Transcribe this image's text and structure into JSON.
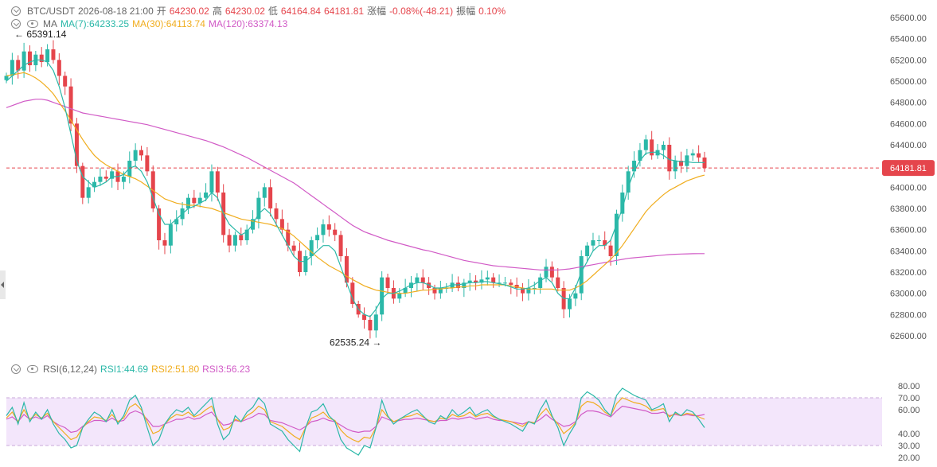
{
  "header": {
    "symbol": "BTC/USDT",
    "datetime": "2026-08-18 21:00",
    "open_label": "开",
    "open": "64230.02",
    "high_label": "高",
    "high": "64230.02",
    "low_label": "低",
    "low": "64164.84",
    "close": "64181.81",
    "change_label": "涨幅",
    "change": "-0.08%(-48.21)",
    "amp_label": "振幅",
    "amp": "0.10%"
  },
  "ma_legend": {
    "label": "MA",
    "ma7": "MA(7):64233.25",
    "ma30": "MA(30):64113.74",
    "ma120": "MA(120):63374.13"
  },
  "rsi_legend": {
    "label": "RSI(6,12,24)",
    "rsi1": "RSI1:44.69",
    "rsi2": "RSI2:51.80",
    "rsi3": "RSI3:56.23"
  },
  "colors": {
    "up": "#2bb8a8",
    "down": "#e5454c",
    "ma7": "#2bb8a8",
    "ma30": "#f0ad1e",
    "ma120": "#d15ac6",
    "rsi_band": "#f3e6fb"
  },
  "chart_data": {
    "type": "candlestick",
    "ylim": [
      62500,
      65700
    ],
    "y_ticks": [
      "65600.00",
      "65400.00",
      "65200.00",
      "65000.00",
      "64800.00",
      "64600.00",
      "64400.00",
      "64200.00",
      "64000.00",
      "63800.00",
      "63600.00",
      "63400.00",
      "63200.00",
      "63000.00",
      "62800.00",
      "62600.00"
    ],
    "y_tick_values": [
      65600,
      65400,
      65200,
      65000,
      64800,
      64600,
      64400,
      64200,
      64000,
      63800,
      63600,
      63400,
      63200,
      63000,
      62800,
      62600
    ],
    "last_price": 64181.81,
    "last_price_label": "64181.81",
    "max_label": "← 65391.14",
    "max_value": 65391.14,
    "min_label": "62535.24 →",
    "min_value": 62535.24,
    "closes": [
      65050,
      65200,
      65100,
      65280,
      65150,
      65250,
      65180,
      65300,
      65200,
      65050,
      64950,
      64600,
      64200,
      63900,
      64000,
      64050,
      64100,
      64080,
      64150,
      64050,
      64100,
      64250,
      64350,
      64300,
      64150,
      63800,
      63500,
      63450,
      63650,
      63700,
      63800,
      63900,
      63850,
      63900,
      63950,
      64150,
      63950,
      63550,
      63450,
      63550,
      63500,
      63600,
      63700,
      63900,
      64000,
      63800,
      63700,
      63600,
      63450,
      63400,
      63200,
      63350,
      63500,
      63550,
      63650,
      63600,
      63550,
      63350,
      63100,
      62900,
      62800,
      62750,
      62650,
      62800,
      63150,
      63050,
      62950,
      63000,
      63050,
      63100,
      63150,
      63100,
      63050,
      63000,
      63050,
      63050,
      63100,
      63050,
      63100,
      63120,
      63100,
      63130,
      63150,
      63100,
      63100,
      63100,
      63080,
      63050,
      63000,
      63050,
      63050,
      63150,
      63250,
      63150,
      63050,
      62850,
      62950,
      63000,
      63350,
      63450,
      63500,
      63500,
      63450,
      63350,
      63750,
      63950,
      64150,
      64250,
      64350,
      64450,
      64300,
      64350,
      64400,
      64150,
      64250,
      64200,
      64300,
      64320,
      64280,
      64182
    ],
    "ma7": [
      65000,
      65050,
      65100,
      65150,
      65180,
      65200,
      65200,
      65180,
      65100,
      64950,
      64750,
      64500,
      64250,
      64100,
      64050,
      64000,
      64020,
      64050,
      64100,
      64100,
      64120,
      64180,
      64200,
      64150,
      64050,
      63900,
      63750,
      63650,
      63650,
      63700,
      63750,
      63800,
      63820,
      63850,
      63880,
      63950,
      63900,
      63750,
      63650,
      63600,
      63550,
      63580,
      63650,
      63750,
      63800,
      63750,
      63650,
      63550,
      63450,
      63350,
      63300,
      63300,
      63350,
      63400,
      63450,
      63450,
      63400,
      63250,
      63100,
      62950,
      62850,
      62800,
      62780,
      62850,
      62950,
      63000,
      63000,
      63020,
      63050,
      63080,
      63100,
      63100,
      63080,
      63050,
      63050,
      63060,
      63080,
      63080,
      63090,
      63100,
      63100,
      63110,
      63110,
      63100,
      63090,
      63080,
      63060,
      63040,
      63040,
      63050,
      63080,
      63120,
      63150,
      63100,
      63000,
      62950,
      62950,
      63050,
      63200,
      63300,
      63400,
      63450,
      63450,
      63500,
      63650,
      63800,
      64000,
      64150,
      64250,
      64320,
      64330,
      64330,
      64300,
      64260,
      64250,
      64240,
      64240,
      64233,
      64233,
      64233
    ],
    "ma30": [
      65050,
      65060,
      65070,
      65080,
      65060,
      65030,
      64990,
      64940,
      64880,
      64800,
      64720,
      64630,
      64540,
      64450,
      64370,
      64300,
      64250,
      64210,
      64180,
      64150,
      64120,
      64100,
      64080,
      64050,
      64010,
      63970,
      63930,
      63890,
      63870,
      63850,
      63840,
      63830,
      63830,
      63820,
      63810,
      63800,
      63780,
      63760,
      63740,
      63720,
      63700,
      63690,
      63680,
      63670,
      63660,
      63650,
      63630,
      63610,
      63580,
      63540,
      63490,
      63440,
      63390,
      63340,
      63300,
      63260,
      63230,
      63200,
      63160,
      63130,
      63100,
      63070,
      63050,
      63030,
      63020,
      63010,
      63000,
      63000,
      63000,
      63010,
      63020,
      63030,
      63030,
      63040,
      63040,
      63050,
      63050,
      63060,
      63060,
      63070,
      63070,
      63080,
      63080,
      63080,
      63080,
      63080,
      63070,
      63060,
      63050,
      63040,
      63040,
      63040,
      63040,
      63040,
      63030,
      63030,
      63030,
      63050,
      63080,
      63120,
      63170,
      63220,
      63270,
      63320,
      63380,
      63450,
      63530,
      63610,
      63690,
      63770,
      63830,
      63880,
      63930,
      63970,
      64000,
      64030,
      64060,
      64080,
      64100,
      64114
    ],
    "ma120": [
      64750,
      64770,
      64790,
      64810,
      64820,
      64830,
      64830,
      64820,
      64800,
      64780,
      64760,
      64740,
      64720,
      64700,
      64690,
      64680,
      64670,
      64660,
      64650,
      64640,
      64630,
      64620,
      64610,
      64600,
      64590,
      64575,
      64560,
      64545,
      64530,
      64515,
      64500,
      64485,
      64470,
      64455,
      64440,
      64420,
      64400,
      64380,
      64355,
      64330,
      64305,
      64280,
      64250,
      64220,
      64190,
      64160,
      64130,
      64100,
      64070,
      64040,
      64000,
      63960,
      63920,
      63880,
      63840,
      63800,
      63760,
      63720,
      63680,
      63640,
      63610,
      63580,
      63560,
      63540,
      63520,
      63500,
      63485,
      63470,
      63455,
      63440,
      63425,
      63410,
      63400,
      63385,
      63370,
      63355,
      63340,
      63325,
      63310,
      63300,
      63290,
      63280,
      63270,
      63260,
      63255,
      63250,
      63245,
      63240,
      63235,
      63230,
      63225,
      63220,
      63220,
      63220,
      63220,
      63225,
      63230,
      63240,
      63250,
      63260,
      63270,
      63280,
      63290,
      63300,
      63310,
      63320,
      63330,
      63335,
      63340,
      63345,
      63350,
      63355,
      63360,
      63365,
      63368,
      63370,
      63372,
      63373,
      63374,
      63374
    ],
    "rsi_ticks": [
      "80.00",
      "70.00",
      "60.00",
      "40.00",
      "30.00",
      "20.00"
    ],
    "rsi_tick_values": [
      80,
      70,
      60,
      40,
      30,
      20
    ],
    "rsi_band": [
      30,
      70
    ],
    "rsi1": [
      55,
      62,
      48,
      66,
      50,
      58,
      52,
      60,
      48,
      40,
      35,
      28,
      30,
      45,
      52,
      58,
      55,
      50,
      60,
      48,
      55,
      68,
      72,
      62,
      45,
      30,
      35,
      48,
      55,
      60,
      58,
      62,
      55,
      60,
      65,
      70,
      48,
      35,
      40,
      55,
      50,
      58,
      62,
      70,
      65,
      48,
      45,
      42,
      35,
      30,
      25,
      45,
      58,
      60,
      65,
      55,
      50,
      35,
      28,
      25,
      22,
      30,
      28,
      45,
      68,
      55,
      48,
      52,
      55,
      58,
      60,
      55,
      50,
      48,
      55,
      52,
      60,
      55,
      58,
      62,
      55,
      58,
      60,
      55,
      52,
      50,
      48,
      45,
      42,
      50,
      48,
      60,
      68,
      55,
      45,
      30,
      40,
      48,
      70,
      75,
      72,
      68,
      60,
      55,
      72,
      78,
      75,
      72,
      70,
      68,
      60,
      62,
      65,
      50,
      58,
      55,
      60,
      58,
      52,
      45
    ],
    "rsi2": [
      53,
      58,
      50,
      60,
      52,
      56,
      53,
      57,
      50,
      45,
      40,
      35,
      37,
      45,
      50,
      54,
      53,
      51,
      56,
      50,
      53,
      62,
      65,
      60,
      50,
      40,
      42,
      48,
      53,
      56,
      55,
      58,
      54,
      56,
      60,
      63,
      52,
      43,
      45,
      52,
      50,
      55,
      58,
      63,
      60,
      50,
      48,
      46,
      42,
      38,
      35,
      45,
      53,
      55,
      58,
      53,
      51,
      43,
      38,
      35,
      33,
      37,
      36,
      45,
      60,
      54,
      50,
      52,
      54,
      55,
      57,
      54,
      51,
      50,
      53,
      52,
      56,
      54,
      55,
      58,
      54,
      56,
      57,
      54,
      52,
      51,
      50,
      48,
      46,
      50,
      49,
      56,
      61,
      54,
      48,
      40,
      44,
      49,
      63,
      67,
      66,
      63,
      58,
      55,
      65,
      70,
      68,
      66,
      65,
      63,
      59,
      60,
      61,
      54,
      57,
      55,
      57,
      56,
      54,
      52
    ],
    "rsi3": [
      52,
      54,
      50,
      56,
      52,
      54,
      52,
      55,
      50,
      47,
      45,
      41,
      42,
      46,
      49,
      51,
      51,
      50,
      53,
      50,
      51,
      57,
      59,
      57,
      52,
      46,
      46,
      48,
      50,
      52,
      52,
      54,
      52,
      53,
      56,
      58,
      52,
      47,
      48,
      51,
      50,
      52,
      54,
      57,
      56,
      51,
      50,
      49,
      47,
      45,
      43,
      46,
      50,
      51,
      53,
      51,
      50,
      47,
      44,
      42,
      41,
      42,
      42,
      46,
      54,
      52,
      50,
      51,
      52,
      52,
      53,
      52,
      51,
      50,
      51,
      51,
      53,
      52,
      53,
      54,
      52,
      53,
      54,
      52,
      51,
      51,
      50,
      49,
      48,
      50,
      49,
      52,
      56,
      52,
      49,
      46,
      47,
      50,
      56,
      59,
      59,
      58,
      56,
      54,
      59,
      63,
      62,
      61,
      60,
      59,
      57,
      57,
      58,
      55,
      56,
      55,
      56,
      55,
      55,
      56
    ]
  }
}
